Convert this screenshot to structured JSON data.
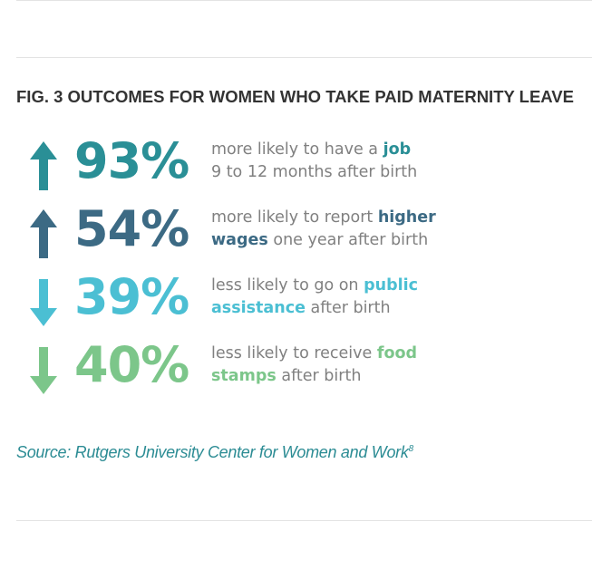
{
  "figure": {
    "title": "FIG. 3 OUTCOMES FOR WOMEN WHO TAKE PAID MATERNITY LEAVE",
    "source": "Source: Rutgers University Center for Women and Work",
    "source_note": "8"
  },
  "chart_data": {
    "type": "table",
    "title": "FIG. 3 OUTCOMES FOR WOMEN WHO TAKE PAID MATERNITY LEAVE",
    "rows": [
      {
        "direction": "up",
        "value": 93,
        "label": "93%",
        "color": "#2a8f96",
        "desc_line1_pre": "more likely to have a ",
        "desc_line1_hl": "job",
        "desc_line2_hl": "",
        "desc_line2_post": "9 to 12 months after birth"
      },
      {
        "direction": "up",
        "value": 54,
        "label": "54%",
        "color": "#3c6a84",
        "desc_line1_pre": "more likely to report ",
        "desc_line1_hl": "higher",
        "desc_line2_hl": "wages",
        "desc_line2_post": " one year after birth"
      },
      {
        "direction": "down",
        "value": 39,
        "label": "39%",
        "color": "#4bbfd3",
        "desc_line1_pre": "less likely to go on ",
        "desc_line1_hl": "public",
        "desc_line2_hl": "assistance",
        "desc_line2_post": " after birth"
      },
      {
        "direction": "down",
        "value": 40,
        "label": "40%",
        "color": "#7cc68a",
        "desc_line1_pre": "less likely to receive ",
        "desc_line1_hl": "food",
        "desc_line2_hl": "stamps",
        "desc_line2_post": " after birth"
      }
    ]
  },
  "icons": [
    "arrow-up-icon",
    "arrow-up-icon",
    "arrow-down-icon",
    "arrow-down-icon"
  ]
}
